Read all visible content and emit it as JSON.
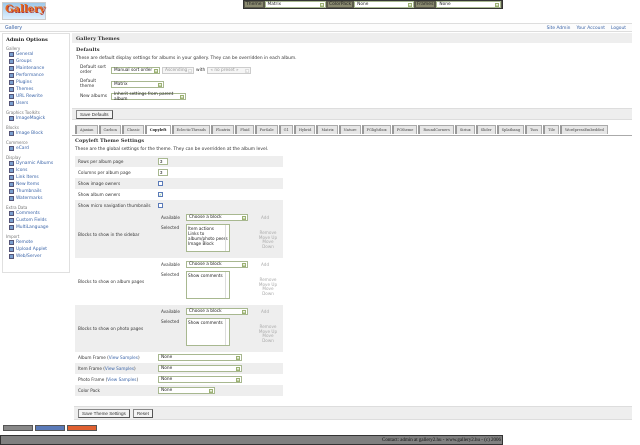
{
  "topbar": {
    "theme_label": "Theme",
    "theme_value": "Matrix",
    "colorpack_label": "ColorPack",
    "colorpack_value": "None",
    "frames_label": "Frames",
    "frames_value": "None"
  },
  "logo": {
    "text": "Gallery"
  },
  "breadcrumb": {
    "gallery": "Gallery"
  },
  "header_links": [
    "Site Admin",
    "Your Account",
    "Logout"
  ],
  "sidebar": {
    "title": "Admin Options",
    "groups": [
      {
        "label": "Gallery",
        "items": [
          "General",
          "Groups",
          "Maintenance",
          "Performance",
          "Plugins",
          "Themes",
          "URL Rewrite",
          "Users"
        ]
      },
      {
        "label": "Graphics Toolkits",
        "items": [
          "ImageMagick"
        ]
      },
      {
        "label": "Blocks",
        "items": [
          "Image Block"
        ]
      },
      {
        "label": "Commerce",
        "items": [
          "eCard"
        ]
      },
      {
        "label": "Display",
        "items": [
          "Dynamic Albums",
          "Icons",
          "Link Items",
          "New Items",
          "Thumbnails",
          "Watermarks"
        ]
      },
      {
        "label": "Extra Data",
        "items": [
          "Comments",
          "Custom Fields",
          "MultiLanguage"
        ]
      },
      {
        "label": "Import",
        "items": [
          "Remote",
          "Upload Applet",
          "Web/Server"
        ]
      }
    ],
    "current": "Themes"
  },
  "main": {
    "title": "Gallery Themes",
    "defaults_title": "Defaults",
    "defaults_desc": "These are default display settings for albums in your gallery. They can be overridden in each album.",
    "sort_label": "Default sort order",
    "sort_value": "Manual sort order",
    "sort_dir": "Ascending",
    "with_label": "with",
    "with_value": "« no preset »",
    "theme_label": "Default theme",
    "theme_value": "Matrix",
    "new_albums_label": "New albums",
    "new_albums_value": "Inherit settings from parent album",
    "save_defaults": "Save Defaults",
    "tabs": [
      "Ajaxian",
      "Carbon",
      "Classic",
      "Copyleft",
      "EclecticThreads",
      "Floatrix",
      "Fluid",
      "ForSale",
      "G1",
      "Hybrid",
      "Matrix",
      "Nature",
      "PGlightbox",
      "PGtheme",
      "RoundCorners",
      "Siriux",
      "Slider",
      "Splatbang",
      "Tsos",
      "Tile",
      "WordpressEmbedded"
    ],
    "active_tab": "Copyleft",
    "settings_title": "Copyleft Theme Settings",
    "settings_desc": "These are the global settings for the theme. They can be overridden at the album level.",
    "rows_label": "Rows per album page",
    "rows_value": "3",
    "cols_label": "Columns per album page",
    "cols_value": "3",
    "image_owners_label": "Show image owners",
    "image_owners": false,
    "album_owners_label": "Show album owners",
    "album_owners": true,
    "micro_nav_label": "Show micro navigation thumbnails",
    "micro_nav": false,
    "available_label": "Available",
    "selected_label": "Selected",
    "choose_block": "Choose a block",
    "add": "Add",
    "remove": "Remove",
    "move_up": "Move Up",
    "move_down": "Move Down",
    "sidebar_blocks_label": "Blocks to show in the sidebar",
    "sidebar_blocks": [
      "Item actions",
      "Links to album/photo peers",
      "Image Block"
    ],
    "album_blocks_label": "Blocks to show on album pages",
    "album_blocks": [
      "Show comments"
    ],
    "photo_blocks_label": "Blocks to show on photo pages",
    "photo_blocks": [
      "Show comments"
    ],
    "view_samples": "View Samples",
    "album_frame_label": "Album Frame",
    "item_frame_label": "Item Frame",
    "photo_frame_label": "Photo Frame",
    "none": "None",
    "color_pack_label": "Color Pack",
    "save_theme": "Save Theme Settings",
    "reset": "Reset"
  },
  "footer": {
    "text": "Contact: admin at gallery2.hu - www.gallery2.hu - (c) 2006"
  }
}
